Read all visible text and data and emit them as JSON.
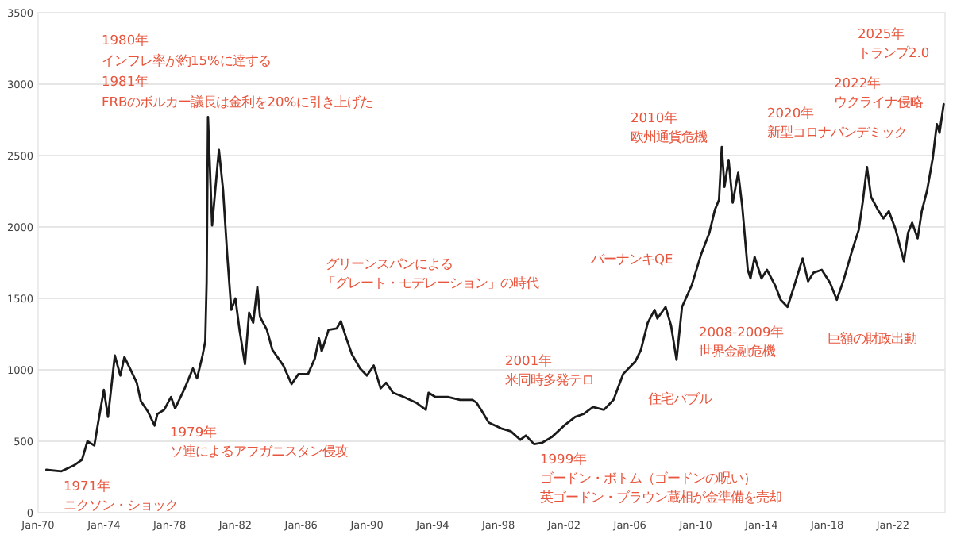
{
  "chart_data": {
    "type": "line",
    "grid": "y",
    "marker": "none",
    "line_style": "solid",
    "xlim": [
      "1970-01",
      "2025-03"
    ],
    "ylim": [
      0,
      3500
    ],
    "yticks": [
      0,
      500,
      1000,
      1500,
      2000,
      2500,
      3000,
      3500
    ],
    "xticks": [
      {
        "value": "1970-01",
        "label": "Jan-70"
      },
      {
        "value": "1974-01",
        "label": "Jan-74"
      },
      {
        "value": "1978-01",
        "label": "Jan-78"
      },
      {
        "value": "1982-01",
        "label": "Jan-82"
      },
      {
        "value": "1986-01",
        "label": "Jan-86"
      },
      {
        "value": "1990-01",
        "label": "Jan-90"
      },
      {
        "value": "1994-01",
        "label": "Jan-94"
      },
      {
        "value": "1998-01",
        "label": "Jan-98"
      },
      {
        "value": "2002-01",
        "label": "Jan-02"
      },
      {
        "value": "2006-01",
        "label": "Jan-06"
      },
      {
        "value": "2010-01",
        "label": "Jan-10"
      },
      {
        "value": "2014-01",
        "label": "Jan-14"
      },
      {
        "value": "2018-01",
        "label": "Jan-18"
      },
      {
        "value": "2022-01",
        "label": "Jan-22"
      }
    ],
    "x": [
      "1970-07",
      "1971-06",
      "1972-03",
      "1972-09",
      "1973-01",
      "1973-06",
      "1973-09",
      "1974-01",
      "1974-04",
      "1974-09",
      "1975-01",
      "1975-04",
      "1975-08",
      "1976-01",
      "1976-04",
      "1976-09",
      "1977-02",
      "1977-04",
      "1977-09",
      "1978-02",
      "1978-05",
      "1978-12",
      "1979-06",
      "1979-09",
      "1980-01",
      "1980-03",
      "1980-04",
      "1980-05",
      "1980-08",
      "1980-12",
      "1981-01",
      "1981-04",
      "1981-07",
      "1981-10",
      "1982-01",
      "1982-04",
      "1982-08",
      "1982-11",
      "1983-02",
      "1983-05",
      "1983-07",
      "1983-12",
      "1984-04",
      "1984-12",
      "1985-06",
      "1985-11",
      "1986-06",
      "1986-11",
      "1987-02",
      "1987-04",
      "1987-09",
      "1988-03",
      "1988-06",
      "1988-10",
      "1989-02",
      "1989-08",
      "1990-01",
      "1990-06",
      "1990-11",
      "1991-03",
      "1991-08",
      "1992-04",
      "1993-01",
      "1993-08",
      "1993-10",
      "1994-03",
      "1994-12",
      "1995-09",
      "1996-06",
      "1996-09",
      "1997-01",
      "1997-06",
      "1998-03",
      "1998-10",
      "1999-05",
      "1999-09",
      "2000-03",
      "2000-09",
      "2001-04",
      "2002-01",
      "2002-09",
      "2003-03",
      "2003-10",
      "2004-06",
      "2005-01",
      "2005-08",
      "2006-05",
      "2006-09",
      "2007-02",
      "2007-07",
      "2007-09",
      "2008-03",
      "2008-07",
      "2008-11",
      "2009-03",
      "2009-10",
      "2010-05",
      "2010-11",
      "2011-03",
      "2011-06",
      "2011-08",
      "2011-10",
      "2012-01",
      "2012-04",
      "2012-08",
      "2012-11",
      "2013-03",
      "2013-05",
      "2013-08",
      "2014-01",
      "2014-05",
      "2014-11",
      "2015-03",
      "2015-08",
      "2016-01",
      "2016-07",
      "2016-11",
      "2017-03",
      "2017-09",
      "2018-03",
      "2018-08",
      "2019-01",
      "2019-07",
      "2019-12",
      "2020-03",
      "2020-06",
      "2020-09",
      "2021-02",
      "2021-06",
      "2021-10",
      "2022-03",
      "2022-09",
      "2022-12",
      "2023-03",
      "2023-07",
      "2023-10",
      "2024-02",
      "2024-06",
      "2024-09",
      "2024-11",
      "2025-02"
    ],
    "series": [
      {
        "color": "#1a1a1a",
        "values": [
          300,
          290,
          330,
          370,
          500,
          470,
          640,
          860,
          670,
          1100,
          960,
          1090,
          1010,
          910,
          780,
          710,
          610,
          690,
          720,
          810,
          730,
          870,
          1010,
          940,
          1100,
          1200,
          1610,
          2770,
          2010,
          2440,
          2540,
          2260,
          1810,
          1420,
          1500,
          1280,
          1040,
          1400,
          1330,
          1580,
          1370,
          1280,
          1140,
          1030,
          900,
          970,
          970,
          1080,
          1220,
          1130,
          1280,
          1290,
          1340,
          1220,
          1110,
          1010,
          960,
          1030,
          870,
          910,
          840,
          810,
          770,
          720,
          840,
          810,
          810,
          790,
          790,
          770,
          710,
          630,
          590,
          570,
          510,
          540,
          480,
          490,
          530,
          610,
          670,
          690,
          740,
          720,
          790,
          970,
          1060,
          1140,
          1330,
          1420,
          1360,
          1440,
          1310,
          1070,
          1440,
          1590,
          1810,
          1960,
          2120,
          2190,
          2560,
          2280,
          2470,
          2170,
          2380,
          2140,
          1700,
          1640,
          1790,
          1640,
          1700,
          1590,
          1490,
          1440,
          1590,
          1780,
          1620,
          1680,
          1700,
          1610,
          1490,
          1630,
          1830,
          1980,
          2180,
          2420,
          2210,
          2120,
          2060,
          2110,
          1980,
          1760,
          1960,
          2030,
          1920,
          2110,
          2260,
          2480,
          2720,
          2660,
          2860
        ]
      }
    ],
    "annotations": [
      "1980年",
      "インフレ率が約15%に達する",
      "1981年",
      "FRBのボルカー議長は金利を20%に引き上げた",
      "1971年",
      "ニクソン・ショック",
      "1979年",
      "ソ連によるアフガニスタン侵攻",
      "グリーンスパンによる",
      "「グレート・モデレーション」の時代",
      "2001年",
      "米同時多発テロ",
      "1999年",
      "ゴードン・ボトム（ゴードンの呪い）",
      "英ゴードン・ブラウン蔵相が金準備を売却",
      "住宅バブル",
      "バーナンキQE",
      "2008-2009年",
      "世界金融危機",
      "2010年",
      "欧州通貨危機",
      "2020年",
      "新型コロナパンデミック",
      "2022年",
      "ウクライナ侵略",
      "2025年",
      "トランプ2.0",
      "巨額の財政出動"
    ]
  }
}
